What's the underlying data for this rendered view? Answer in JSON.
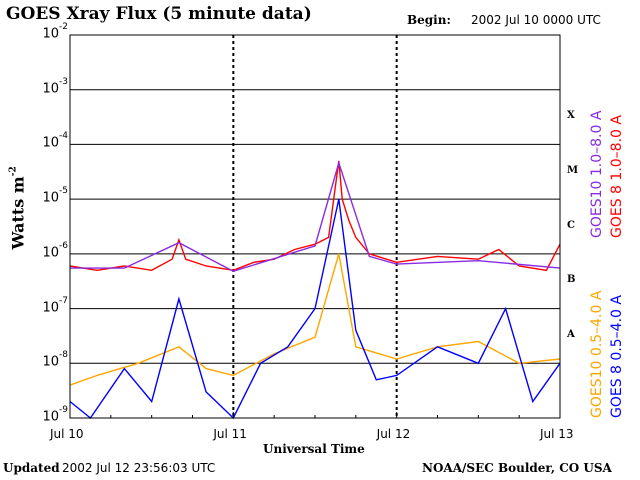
{
  "header": {
    "title": "GOES Xray Flux (5 minute data)",
    "begin_label": "Begin:",
    "begin_value": "2002 Jul 10 0000 UTC"
  },
  "footer": {
    "updated_label": "Updated",
    "updated_value": "2002 Jul 12 23:56:03 UTC",
    "credit": "NOAA/SEC Boulder, CO USA"
  },
  "colors": {
    "goes10_long": "#8a2be2",
    "goes8_long": "#ff0000",
    "goes10_short": "#ffa500",
    "goes8_short": "#0000ff"
  },
  "chart_data": {
    "type": "line",
    "title": "GOES Xray Flux (5 minute data)",
    "xlabel": "Universal Time",
    "ylabel": "Watts m",
    "ylabel_sup": "-2",
    "yscale": "log",
    "ylim": [
      1e-09,
      0.01
    ],
    "y_ticks": [
      {
        "base": "10",
        "exp": "-2",
        "value": 0.01
      },
      {
        "base": "10",
        "exp": "-3",
        "value": 0.001
      },
      {
        "base": "10",
        "exp": "-4",
        "value": 0.0001
      },
      {
        "base": "10",
        "exp": "-5",
        "value": 1e-05
      },
      {
        "base": "10",
        "exp": "-6",
        "value": 1e-06
      },
      {
        "base": "10",
        "exp": "-7",
        "value": 1e-07
      },
      {
        "base": "10",
        "exp": "-8",
        "value": 1e-08
      },
      {
        "base": "10",
        "exp": "-9",
        "value": 1e-09
      }
    ],
    "x_ticks": [
      "Jul 10",
      "Jul 11",
      "Jul 12",
      "Jul 13"
    ],
    "xlim": [
      "2002-07-10",
      "2002-07-13"
    ],
    "flare_classes": [
      {
        "label": "X",
        "value": 0.000316
      },
      {
        "label": "M",
        "value": 3.16e-05
      },
      {
        "label": "C",
        "value": 3.16e-06
      },
      {
        "label": "B",
        "value": 3.16e-07
      },
      {
        "label": "A",
        "value": 3.16e-08
      }
    ],
    "grid": true,
    "legend": "right",
    "series": [
      {
        "name": "GOES 8 1.0–8.0 A",
        "color": "#ff0000",
        "x": [
          "2002-07-10 00:00",
          "2002-07-10 04:00",
          "2002-07-10 08:00",
          "2002-07-10 12:00",
          "2002-07-10 15:00",
          "2002-07-10 16:00",
          "2002-07-10 17:00",
          "2002-07-10 20:00",
          "2002-07-11 00:00",
          "2002-07-11 03:00",
          "2002-07-11 06:00",
          "2002-07-11 09:00",
          "2002-07-11 12:00",
          "2002-07-11 14:00",
          "2002-07-11 15:30",
          "2002-07-11 16:00",
          "2002-07-11 17:00",
          "2002-07-11 18:00",
          "2002-07-11 20:00",
          "2002-07-12 00:00",
          "2002-07-12 06:00",
          "2002-07-12 12:00",
          "2002-07-12 15:00",
          "2002-07-12 18:00",
          "2002-07-12 22:00",
          "2002-07-13 00:00"
        ],
        "y": [
          6e-07,
          5e-07,
          6e-07,
          5e-07,
          8e-07,
          1.8e-06,
          8e-07,
          6e-07,
          5e-07,
          7e-07,
          8e-07,
          1.2e-06,
          1.5e-06,
          2e-06,
          5e-05,
          1e-05,
          4e-06,
          2e-06,
          1e-06,
          7e-07,
          9e-07,
          8e-07,
          1.2e-06,
          6e-07,
          5e-07,
          1.5e-06
        ]
      },
      {
        "name": "GOES10 1.0–8.0 A",
        "color": "#8a2be2",
        "x": [
          "2002-07-10 00:00",
          "2002-07-10 08:00",
          "2002-07-10 16:00",
          "2002-07-11 00:00",
          "2002-07-11 12:00",
          "2002-07-11 15:30",
          "2002-07-11 20:00",
          "2002-07-12 00:00",
          "2002-07-12 12:00",
          "2002-07-13 00:00"
        ],
        "y": [
          5.5e-07,
          5.5e-07,
          1.6e-06,
          4.8e-07,
          1.4e-06,
          4.6e-05,
          9e-07,
          6.5e-07,
          7.5e-07,
          5.5e-07
        ]
      },
      {
        "name": "GOES10 0.5–4.0 A",
        "color": "#ffa500",
        "x": [
          "2002-07-10 00:00",
          "2002-07-10 04:00",
          "2002-07-10 10:00",
          "2002-07-10 16:00",
          "2002-07-10 20:00",
          "2002-07-11 00:00",
          "2002-07-11 06:00",
          "2002-07-11 12:00",
          "2002-07-11 15:30",
          "2002-07-11 18:00",
          "2002-07-12 00:00",
          "2002-07-12 06:00",
          "2002-07-12 12:00",
          "2002-07-12 18:00",
          "2002-07-13 00:00"
        ],
        "y": [
          4e-09,
          6e-09,
          1e-08,
          2e-08,
          8e-09,
          6e-09,
          1.5e-08,
          3e-08,
          1e-06,
          2e-08,
          1.2e-08,
          2e-08,
          2.5e-08,
          1e-08,
          1.2e-08
        ]
      },
      {
        "name": "GOES 8 0.5–4.0 A",
        "color": "#0000ff",
        "x": [
          "2002-07-10 00:00",
          "2002-07-10 03:00",
          "2002-07-10 08:00",
          "2002-07-10 12:00",
          "2002-07-10 16:00",
          "2002-07-10 20:00",
          "2002-07-11 00:00",
          "2002-07-11 04:00",
          "2002-07-11 08:00",
          "2002-07-11 12:00",
          "2002-07-11 15:30",
          "2002-07-11 18:00",
          "2002-07-11 21:00",
          "2002-07-12 00:00",
          "2002-07-12 06:00",
          "2002-07-12 12:00",
          "2002-07-12 16:00",
          "2002-07-12 20:00",
          "2002-07-13 00:00"
        ],
        "y": [
          2e-09,
          1e-09,
          8e-09,
          2e-09,
          1.5e-07,
          3e-09,
          1e-09,
          1e-08,
          2e-08,
          1e-07,
          1e-05,
          4e-08,
          5e-09,
          6e-09,
          2e-08,
          1e-08,
          1e-07,
          2e-09,
          1e-08
        ]
      }
    ]
  }
}
